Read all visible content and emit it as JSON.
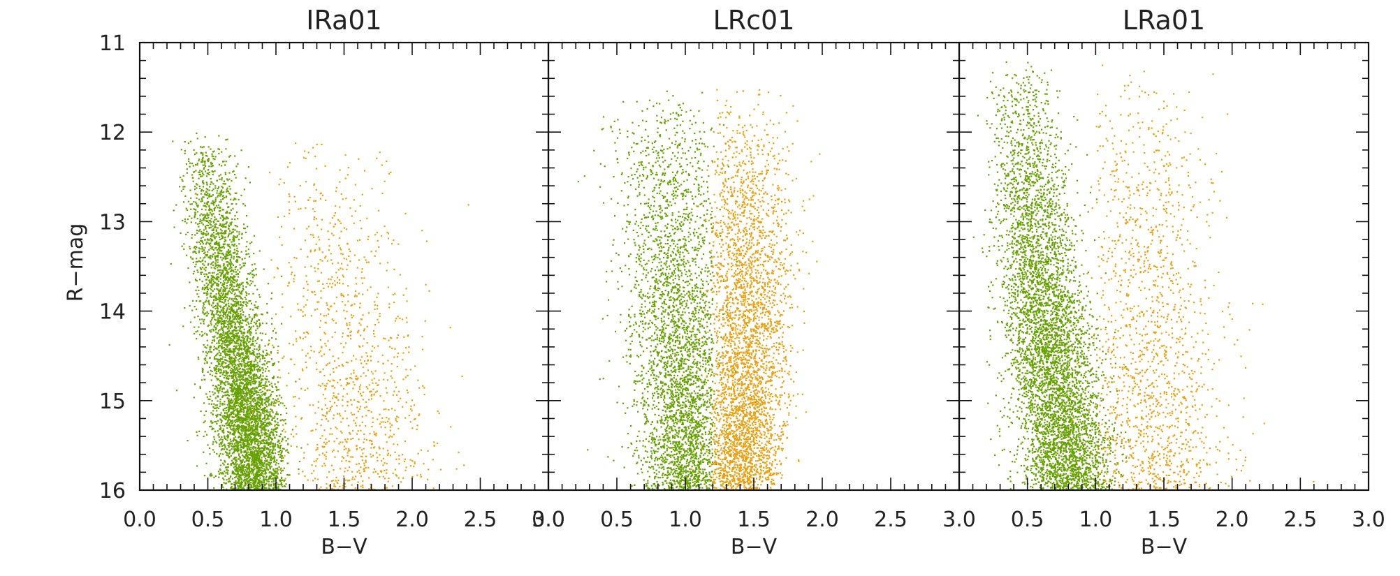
{
  "figure": {
    "shared_ylabel": "R−mag"
  },
  "chart_data": [
    {
      "type": "scatter",
      "title": "IRa01",
      "xlabel": "B−V",
      "ylabel": "R−mag",
      "xlim": [
        0.0,
        3.0
      ],
      "ylim": [
        16.0,
        11.0
      ],
      "y_inverted": true,
      "xticks": [
        0.0,
        0.5,
        1.0,
        1.5,
        2.0,
        2.5,
        3.0
      ],
      "xtick_labels": [
        "0.0",
        "0.5",
        "1.0",
        "1.5",
        "2.0",
        "2.5",
        "3.0"
      ],
      "yticks": [
        11,
        12,
        13,
        14,
        15,
        16
      ],
      "ytick_labels": [
        "11",
        "12",
        "13",
        "14",
        "15",
        "16"
      ],
      "grid": false,
      "series": [
        {
          "color": "#66a000",
          "approx_points": 5200,
          "ridge": [
            [
              12.0,
              0.48
            ],
            [
              13.0,
              0.55
            ],
            [
              14.0,
              0.66
            ],
            [
              15.0,
              0.77
            ],
            [
              16.0,
              0.86
            ]
          ],
          "spread": [
            [
              12.0,
              0.1
            ],
            [
              16.0,
              0.13
            ]
          ],
          "x_range": [
            0.15,
            1.1
          ],
          "y_range": [
            12.0,
            16.0
          ]
        },
        {
          "color": "#e8a010",
          "approx_points": 1100,
          "ridge": [
            [
              12.0,
              1.3
            ],
            [
              13.0,
              1.38
            ],
            [
              14.0,
              1.5
            ],
            [
              15.0,
              1.6
            ],
            [
              16.0,
              1.65
            ]
          ],
          "spread": [
            [
              12.0,
              0.3
            ],
            [
              16.0,
              0.25
            ]
          ],
          "x_range": [
            0.95,
            2.8
          ],
          "y_range": [
            12.0,
            16.0
          ]
        }
      ]
    },
    {
      "type": "scatter",
      "title": "LRc01",
      "xlabel": "B−V",
      "ylabel": "",
      "xlim": [
        0.0,
        3.0
      ],
      "ylim": [
        16.0,
        11.0
      ],
      "y_inverted": true,
      "xticks": [
        0.0,
        0.5,
        1.0,
        1.5,
        2.0,
        2.5,
        3.0
      ],
      "xtick_labels": [
        "0.0",
        "0.5",
        "1.0",
        "1.5",
        "2.0",
        "2.5",
        "3.0"
      ],
      "yticks": [
        11,
        12,
        13,
        14,
        15,
        16
      ],
      "ytick_labels": [],
      "grid": false,
      "series": [
        {
          "color": "#66a000",
          "approx_points": 3600,
          "ridge": [
            [
              11.6,
              0.85
            ],
            [
              13.0,
              0.9
            ],
            [
              14.0,
              0.95
            ],
            [
              15.0,
              0.98
            ],
            [
              16.0,
              1.0
            ]
          ],
          "spread": [
            [
              11.6,
              0.22
            ],
            [
              16.0,
              0.15
            ]
          ],
          "x_range": [
            0.2,
            1.2
          ],
          "y_range": [
            11.5,
            16.0
          ]
        },
        {
          "color": "#e8a010",
          "approx_points": 3800,
          "ridge": [
            [
              11.6,
              1.45
            ],
            [
              13.0,
              1.45
            ],
            [
              14.0,
              1.45
            ],
            [
              15.0,
              1.43
            ],
            [
              16.0,
              1.4
            ]
          ],
          "spread": [
            [
              11.6,
              0.18
            ],
            [
              16.0,
              0.14
            ]
          ],
          "x_range": [
            1.2,
            2.05
          ],
          "y_range": [
            11.5,
            16.0
          ]
        }
      ]
    },
    {
      "type": "scatter",
      "title": "LRa01",
      "xlabel": "B−V",
      "ylabel": "",
      "xlim": [
        0.0,
        3.0
      ],
      "ylim": [
        16.0,
        11.0
      ],
      "y_inverted": true,
      "xticks": [
        0.0,
        0.5,
        1.0,
        1.5,
        2.0,
        2.5,
        3.0
      ],
      "xtick_labels": [
        "",
        "0.5",
        "1.0",
        "1.5",
        "2.0",
        "2.5",
        "3.0"
      ],
      "yticks": [
        11,
        12,
        13,
        14,
        15,
        16
      ],
      "ytick_labels": [],
      "grid": false,
      "series": [
        {
          "color": "#66a000",
          "approx_points": 5400,
          "ridge": [
            [
              11.2,
              0.45
            ],
            [
              12.5,
              0.52
            ],
            [
              13.5,
              0.58
            ],
            [
              14.5,
              0.68
            ],
            [
              15.5,
              0.78
            ],
            [
              16.0,
              0.82
            ]
          ],
          "spread": [
            [
              11.2,
              0.14
            ],
            [
              16.0,
              0.17
            ]
          ],
          "x_range": [
            0.2,
            1.25
          ],
          "y_range": [
            11.2,
            16.0
          ]
        },
        {
          "color": "#e8a010",
          "approx_points": 1500,
          "ridge": [
            [
              11.2,
              1.35
            ],
            [
              13.0,
              1.38
            ],
            [
              14.0,
              1.38
            ],
            [
              15.0,
              1.42
            ],
            [
              16.0,
              1.45
            ]
          ],
          "spread": [
            [
              11.2,
              0.22
            ],
            [
              16.0,
              0.28
            ]
          ],
          "x_range": [
            1.0,
            2.8
          ],
          "y_range": [
            11.2,
            16.0
          ]
        }
      ]
    }
  ]
}
